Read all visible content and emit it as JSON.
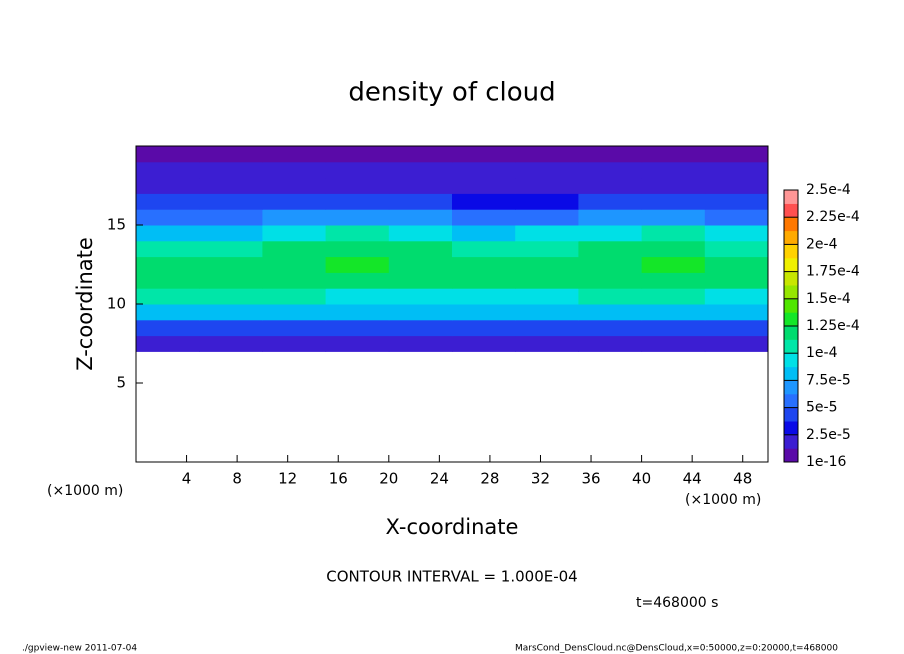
{
  "chart_data": {
    "type": "heatmap",
    "title": "density of cloud",
    "x_label": "X-coordinate",
    "y_label": "Z-coordinate",
    "x_unit_left": "(×1000 m)",
    "x_unit_right": "(×1000 m)",
    "contour_note": "CONTOUR INTERVAL = 1.000E-04",
    "time_note": "t=468000 s",
    "footer_left": "./gpview-new  2011-07-04",
    "footer_right": "MarsCond_DensCloud.nc@DensCloud,x=0:50000,z=0:20000,t=468000",
    "xlim": [
      0,
      50
    ],
    "xticks": [
      4,
      8,
      12,
      16,
      20,
      24,
      28,
      32,
      36,
      40,
      44,
      48
    ],
    "ylim": [
      0,
      20
    ],
    "yticks": [
      5,
      10,
      15
    ],
    "x_edges": [
      0,
      5,
      10,
      15,
      20,
      25,
      30,
      35,
      40,
      45,
      50
    ],
    "y_edges": [
      7,
      8,
      9,
      10,
      11,
      12,
      13,
      14,
      15,
      16,
      17,
      18,
      19,
      20
    ],
    "values": [
      [
        1.5e-05,
        1.5e-05,
        2e-05,
        2e-05,
        1.5e-05,
        1.5e-05,
        1.5e-05,
        1.5e-05,
        1.5e-05,
        1.5e-05
      ],
      [
        4.5e-05,
        4.5e-05,
        5e-05,
        5e-05,
        5e-05,
        5e-05,
        4.5e-05,
        4.5e-05,
        4.5e-05,
        4.5e-05
      ],
      [
        8e-05,
        8e-05,
        8.5e-05,
        8e-05,
        8e-05,
        8e-05,
        8e-05,
        8e-05,
        8e-05,
        8e-05
      ],
      [
        0.000105,
        0.000105,
        0.00011,
        0.0001,
        0.0001,
        0.0001,
        0.0001,
        0.000105,
        0.000105,
        0.0001
      ],
      [
        0.000115,
        0.000115,
        0.00012,
        0.000125,
        0.00012,
        0.000115,
        0.000115,
        0.00012,
        0.000125,
        0.000115
      ],
      [
        0.000115,
        0.000115,
        0.000125,
        0.00013,
        0.000125,
        0.000115,
        0.00012,
        0.000125,
        0.00013,
        0.00012
      ],
      [
        0.000105,
        0.000105,
        0.000115,
        0.000125,
        0.00012,
        0.000105,
        0.00011,
        0.00012,
        0.000125,
        0.00011
      ],
      [
        8.5e-05,
        8.5e-05,
        9.5e-05,
        0.000105,
        0.0001,
        8.5e-05,
        9e-05,
        0.0001,
        0.000105,
        9e-05
      ],
      [
        6e-05,
        6e-05,
        7e-05,
        7e-05,
        6.5e-05,
        6e-05,
        6e-05,
        7e-05,
        7e-05,
        6e-05
      ],
      [
        4e-05,
        4e-05,
        4e-05,
        4e-05,
        4e-05,
        3.5e-05,
        3.5e-05,
        4e-05,
        4e-05,
        4e-05
      ],
      [
        2.5e-05,
        2.5e-05,
        2.5e-05,
        2.5e-05,
        2.5e-05,
        2.5e-05,
        2.5e-05,
        2.5e-05,
        2.5e-05,
        2.5e-05
      ],
      [
        1.5e-05,
        1.5e-05,
        1.5e-05,
        1.5e-05,
        1.5e-05,
        1.5e-05,
        1.5e-05,
        1.5e-05,
        1.5e-05,
        1.5e-05
      ],
      [
        1e-05,
        1e-05,
        1e-05,
        1e-05,
        1e-05,
        1e-05,
        1e-05,
        1e-05,
        1e-05,
        1e-05
      ]
    ],
    "colorbar_ticks": [
      {
        "value": 1e-16,
        "label": "1e-16"
      },
      {
        "value": 2.5e-05,
        "label": "2.5e-5"
      },
      {
        "value": 5e-05,
        "label": "5e-5"
      },
      {
        "value": 7.5e-05,
        "label": "7.5e-5"
      },
      {
        "value": 0.0001,
        "label": "1e-4"
      },
      {
        "value": 0.000125,
        "label": "1.25e-4"
      },
      {
        "value": 0.00015,
        "label": "1.5e-4"
      },
      {
        "value": 0.000175,
        "label": "1.75e-4"
      },
      {
        "value": 0.0002,
        "label": "2e-4"
      },
      {
        "value": 0.000225,
        "label": "2.25e-4"
      },
      {
        "value": 0.00025,
        "label": "2.5e-4"
      }
    ],
    "colors": [
      "#5a0aa8",
      "#3c1ed2",
      "#0a0ae6",
      "#1e46f0",
      "#2870ff",
      "#1e96ff",
      "#00bef5",
      "#00e0e6",
      "#00e6a8",
      "#00dc6e",
      "#14e628",
      "#50e600",
      "#96e600",
      "#c8e600",
      "#f0f000",
      "#ffd200",
      "#ffaa00",
      "#ff7800",
      "#ff5050",
      "#ff9696"
    ]
  }
}
